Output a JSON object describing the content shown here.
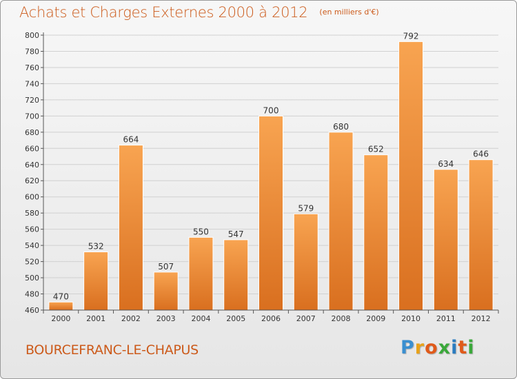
{
  "header": {
    "title": "Achats et Charges Externes 2000 à 2012",
    "unit": "(en milliers d'€)"
  },
  "footer": {
    "city": "BOURCEFRANC-LE-CHAPUS",
    "brand_letters": [
      "P",
      "r",
      "o",
      "x",
      "i",
      "t",
      "i"
    ],
    "brand_colors": [
      "#3a8fd0",
      "#e8a21a",
      "#e05a1a",
      "#3aa83a",
      "#2a7cc0",
      "#e05a1a",
      "#3aa83a"
    ]
  },
  "colors": {
    "accent": "#cc5a1a",
    "bar_top": "#f8a451",
    "bar_bottom": "#d96f1f"
  },
  "chart_data": {
    "type": "bar",
    "title": "Achats et Charges Externes 2000 à 2012",
    "xlabel": "",
    "ylabel": "",
    "categories": [
      "2000",
      "2001",
      "2002",
      "2003",
      "2004",
      "2005",
      "2006",
      "2007",
      "2008",
      "2009",
      "2010",
      "2011",
      "2012"
    ],
    "values": [
      470,
      532,
      664,
      507,
      550,
      547,
      700,
      579,
      680,
      652,
      792,
      634,
      646
    ],
    "ylim": [
      460,
      800
    ],
    "yticks": [
      460,
      480,
      500,
      520,
      540,
      560,
      580,
      600,
      620,
      640,
      660,
      680,
      700,
      720,
      740,
      760,
      780,
      800
    ],
    "grid": true,
    "legend": "none"
  }
}
